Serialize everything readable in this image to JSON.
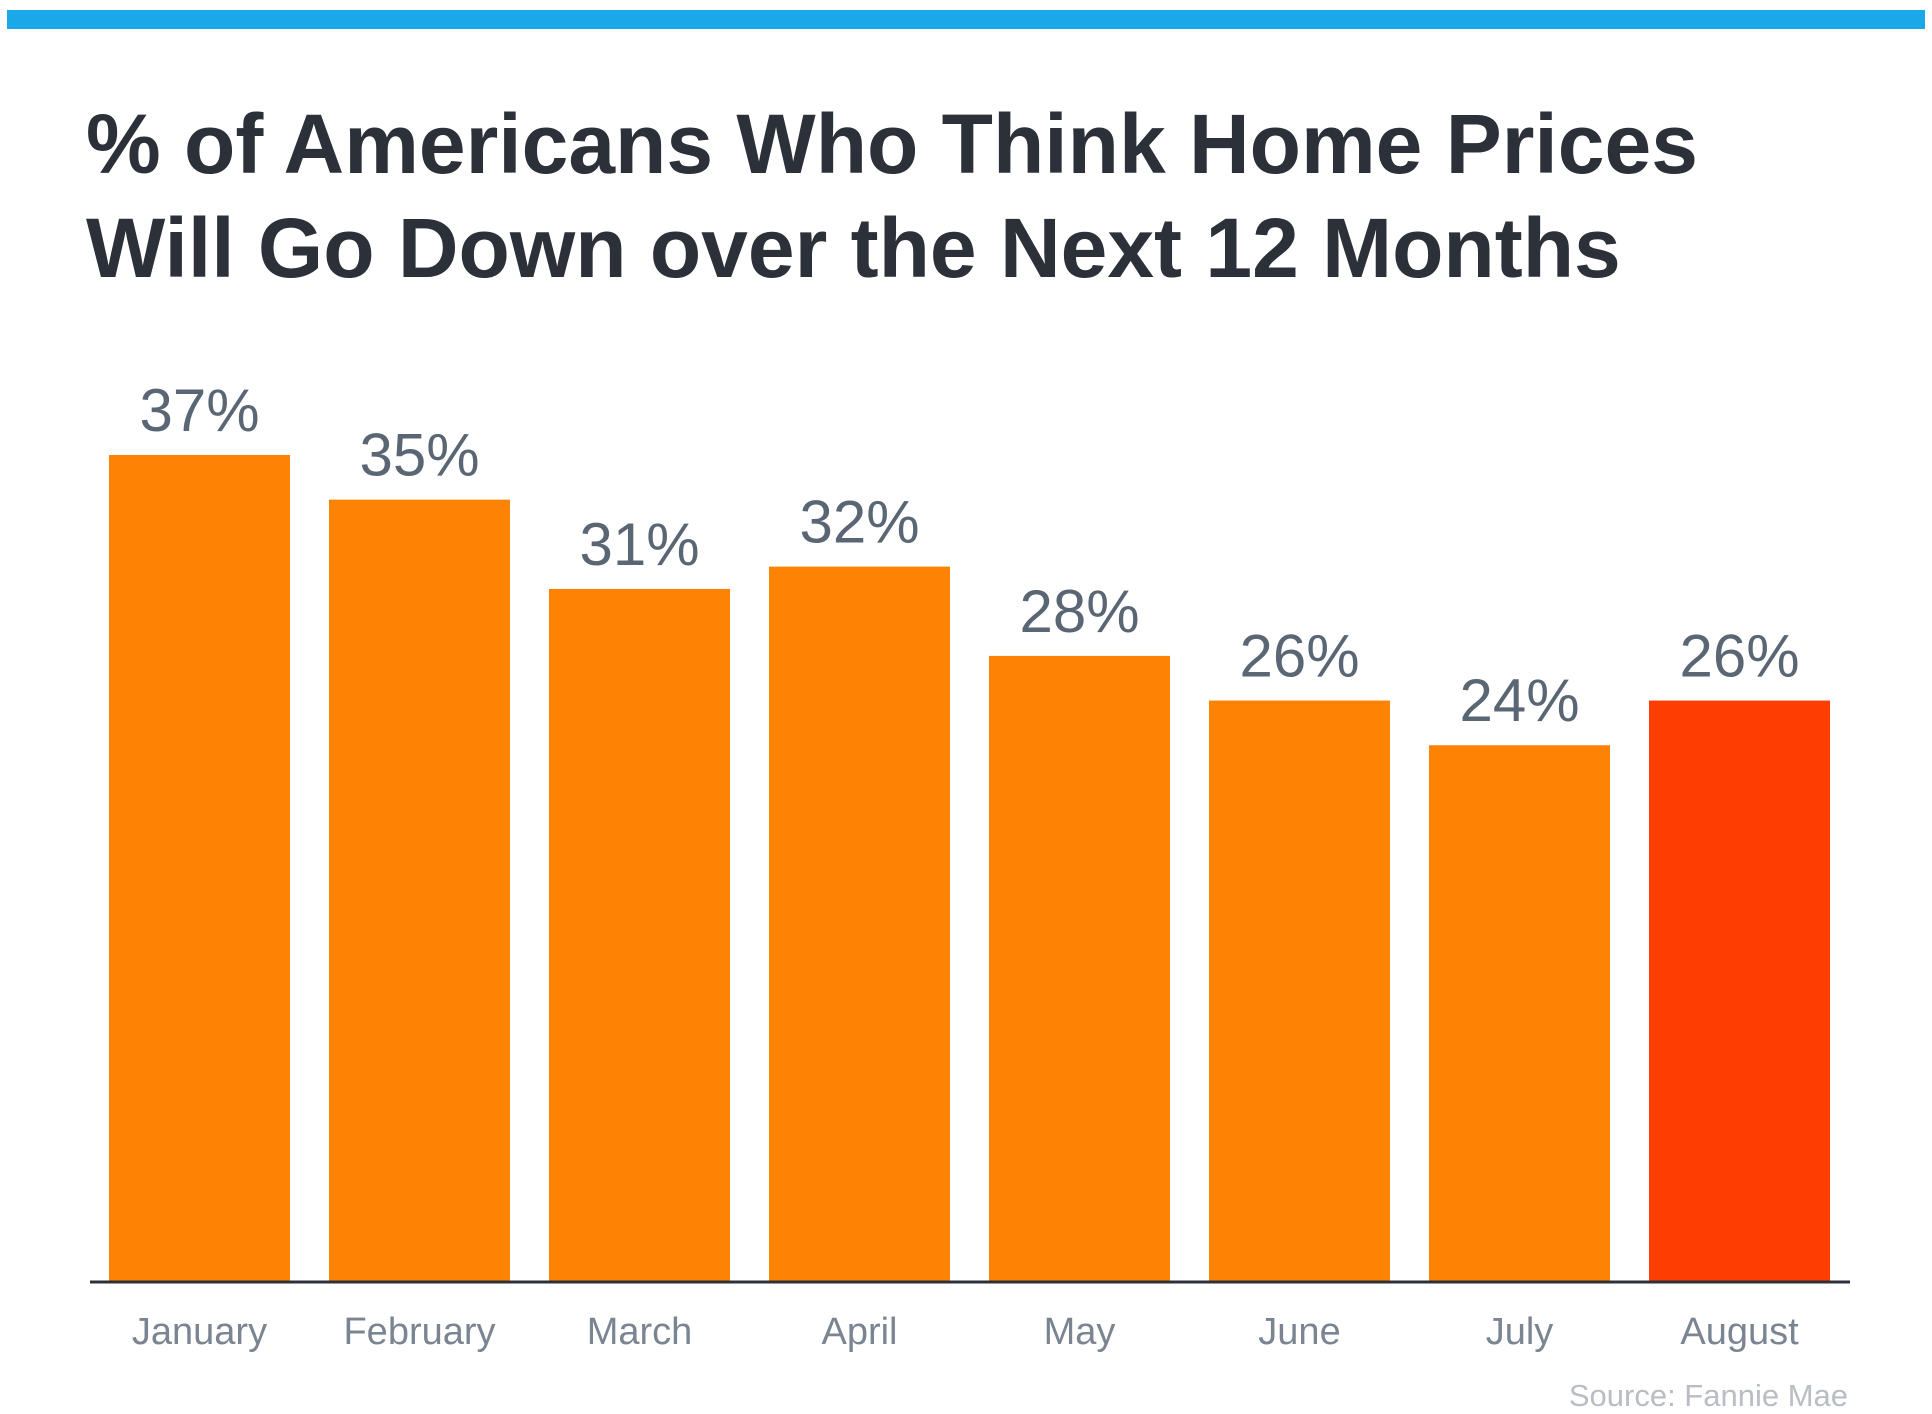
{
  "title_lines": [
    "% of Americans Who Think Home Prices",
    "Will Go Down over the Next 12 Months"
  ],
  "source": "Source: Fannie Mae",
  "colors": {
    "top_bar": "#1aa8e8",
    "bar": "#fe8204",
    "bar_highlight": "#fe3d03",
    "title": "#2b3039",
    "value_label": "#5b6675",
    "category_label": "#7b8592",
    "axis": "#2b3039",
    "source": "#b9bec4"
  },
  "chart_data": {
    "type": "bar",
    "title": "% of Americans Who Think Home Prices Will Go Down over the Next 12 Months",
    "categories": [
      "January",
      "February",
      "March",
      "April",
      "May",
      "June",
      "July",
      "August"
    ],
    "values": [
      37,
      35,
      31,
      32,
      28,
      26,
      24,
      26
    ],
    "value_labels": [
      "37%",
      "35%",
      "31%",
      "32%",
      "28%",
      "26%",
      "24%",
      "26%"
    ],
    "highlight_index": 7,
    "ylim": [
      0,
      37
    ],
    "xlabel": "",
    "ylabel": "",
    "grid": false,
    "legend": "none"
  }
}
